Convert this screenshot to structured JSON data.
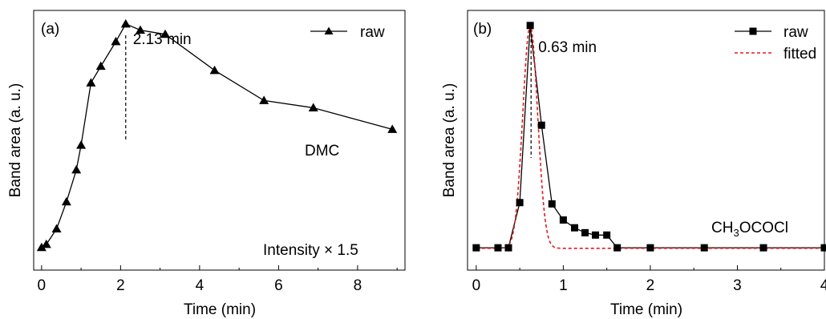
{
  "chart_data": [
    {
      "panel_label": "(a)",
      "type": "line",
      "xlabel": "Time (min)",
      "ylabel": "Band area (a. u.)",
      "xlim": [
        -0.2,
        9.2
      ],
      "ylim": [
        0,
        1.0
      ],
      "xticks": [
        0,
        2,
        4,
        6,
        8
      ],
      "xtick_labels": [
        "0",
        "2",
        "4",
        "6",
        "8"
      ],
      "y_tick_labels_shown": false,
      "legend_placement": "top-right",
      "series": [
        {
          "name": "raw",
          "marker": "triangle",
          "color": "#000000",
          "x": [
            0.0,
            0.12,
            0.38,
            0.63,
            0.88,
            1.0,
            1.25,
            1.5,
            1.88,
            2.13,
            2.5,
            3.13,
            4.38,
            5.63,
            6.88,
            8.88
          ],
          "y": [
            0.087,
            0.099,
            0.159,
            0.263,
            0.386,
            0.481,
            0.721,
            0.785,
            0.88,
            0.948,
            0.924,
            0.908,
            0.769,
            0.653,
            0.625,
            0.542
          ]
        }
      ],
      "annotations": {
        "peak_x": 2.13,
        "peak_label": "2.13 min",
        "compound_label": "DMC",
        "intensity_label": "Intensity × 1.5"
      }
    },
    {
      "panel_label": "(b)",
      "type": "line",
      "xlabel": "Time (min)",
      "ylabel": "Band area (a. u.)",
      "xlim": [
        -0.1,
        4.0
      ],
      "ylim": [
        0,
        1.0
      ],
      "xticks": [
        0,
        1,
        2,
        3,
        4
      ],
      "xtick_labels": [
        "0",
        "1",
        "2",
        "3",
        "4"
      ],
      "y_tick_labels_shown": false,
      "legend_placement": "top-right",
      "series": [
        {
          "name": "raw",
          "marker": "square",
          "color": "#000000",
          "x": [
            0.0,
            0.25,
            0.37,
            0.5,
            0.62,
            0.75,
            0.87,
            1.0,
            1.13,
            1.25,
            1.37,
            1.5,
            1.62,
            2.0,
            2.62,
            3.3,
            4.0
          ],
          "y": [
            0.086,
            0.086,
            0.086,
            0.26,
            0.942,
            0.558,
            0.255,
            0.193,
            0.163,
            0.144,
            0.135,
            0.135,
            0.086,
            0.086,
            0.086,
            0.086,
            0.086
          ]
        },
        {
          "name": "fitted",
          "line_style": "dashed",
          "color": "#e41a1c",
          "peak_center": 0.62,
          "peak_height": 0.942,
          "peak_sigma": 0.085,
          "baseline": 0.084
        }
      ],
      "annotations": {
        "peak_x": 0.63,
        "peak_label": "0.63 min",
        "compound_label_main": "CH",
        "compound_label_sub": "3",
        "compound_label_tail": "OCOCl"
      }
    }
  ]
}
